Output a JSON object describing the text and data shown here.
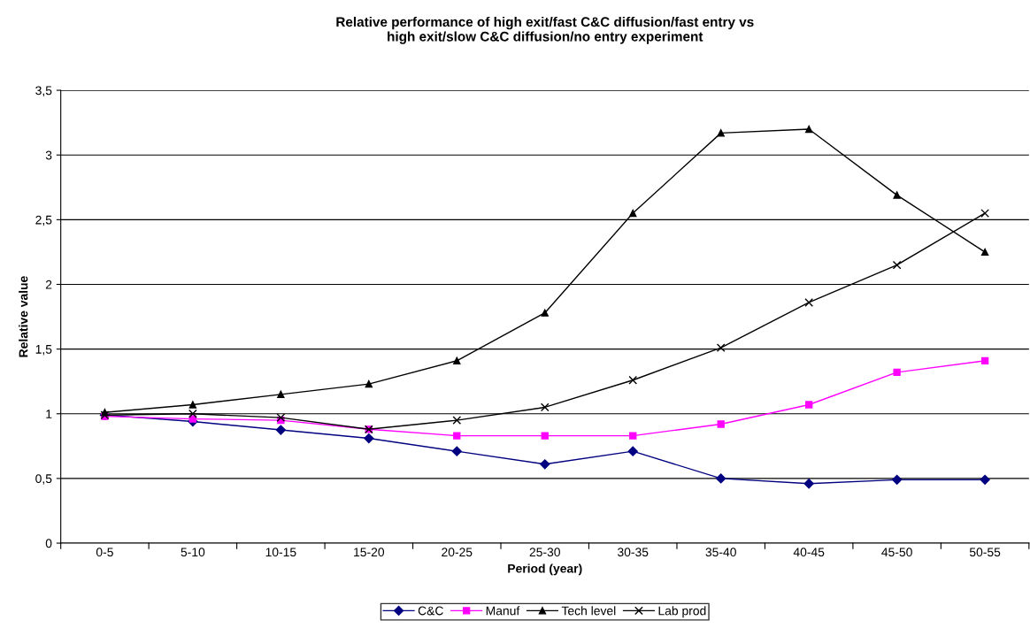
{
  "chart_data": {
    "type": "line",
    "title": "Relative performance of high exit/fast C&C diffusion/fast entry vs\nhigh exit/slow C&C diffusion/no entry experiment",
    "xlabel": "Period (year)",
    "ylabel": "Relative value",
    "categories": [
      "0-5",
      "5-10",
      "10-15",
      "15-20",
      "20-25",
      "25-30",
      "30-35",
      "35-40",
      "40-45",
      "45-50",
      "50-55"
    ],
    "series": [
      {
        "name": "C&C",
        "color": "#000080",
        "marker": "diamond",
        "values": [
          0.99,
          0.94,
          0.875,
          0.81,
          0.71,
          0.61,
          0.71,
          0.5,
          0.46,
          0.49,
          0.49
        ]
      },
      {
        "name": "Manuf",
        "color": "#ff00ff",
        "marker": "square",
        "values": [
          0.98,
          0.96,
          0.95,
          0.88,
          0.83,
          0.83,
          0.83,
          0.92,
          1.07,
          1.32,
          1.41
        ]
      },
      {
        "name": "Tech level",
        "color": "#000000",
        "marker": "triangle",
        "values": [
          1.01,
          1.07,
          1.15,
          1.23,
          1.41,
          1.78,
          2.55,
          3.17,
          3.2,
          2.69,
          2.25
        ]
      },
      {
        "name": "Lab prod",
        "color": "#000000",
        "marker": "cross",
        "values": [
          0.99,
          1.0,
          0.97,
          0.88,
          0.95,
          1.05,
          1.26,
          1.51,
          1.86,
          2.15,
          2.55
        ]
      }
    ],
    "ylim": [
      0,
      3.5
    ],
    "yticks": [
      0,
      {
        "value": 0.5,
        "label": "0,5"
      },
      1,
      {
        "value": 1.5,
        "label": "1,5"
      },
      2,
      {
        "value": 2.5,
        "label": "2,5"
      },
      3,
      {
        "value": 3.5,
        "label": "3,5"
      }
    ],
    "grid": "y",
    "legend": "bottom",
    "line_style": "solid"
  }
}
